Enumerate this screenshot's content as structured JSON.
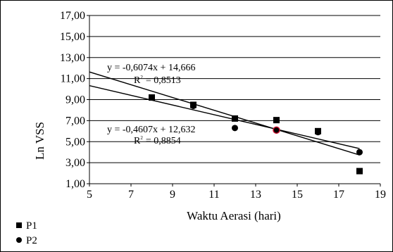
{
  "chart_data": {
    "type": "scatter",
    "xlabel": "Waktu Aerasi (hari)",
    "ylabel": "Ln VSS",
    "xlim": [
      5,
      19
    ],
    "ylim": [
      1,
      17
    ],
    "x_ticks": [
      "5",
      "7",
      "9",
      "11",
      "13",
      "15",
      "17",
      "19"
    ],
    "y_ticks": [
      "1,00",
      "3,00",
      "5,00",
      "7,00",
      "9,00",
      "11,00",
      "13,00",
      "15,00",
      "17,00"
    ],
    "grid": "horizontal",
    "legend_position": "bottom-left",
    "series": [
      {
        "name": "P1",
        "marker": "square",
        "x": [
          8,
          10,
          12,
          14,
          16,
          18
        ],
        "y": [
          9.2,
          8.5,
          7.2,
          7.05,
          6.0,
          2.2
        ],
        "trendline": {
          "slope": -0.6074,
          "intercept": 14.666
        },
        "equation": "y = -0,6074x + 14,666",
        "r2_label": "R",
        "r2_sup": "2",
        "r2_value": "= 0,8513"
      },
      {
        "name": "P2",
        "marker": "circle",
        "x": [
          8,
          10,
          12,
          14,
          16,
          18
        ],
        "y": [
          9.2,
          8.4,
          6.3,
          6.1,
          5.9,
          4.0
        ],
        "trendline": {
          "slope": -0.4607,
          "intercept": 12.632
        },
        "equation": "y = -0,4607x + 12,632",
        "r2_label": "R",
        "r2_sup": "2",
        "r2_value": "= 0,8854"
      }
    ],
    "highlight_color": "#c8102e"
  }
}
